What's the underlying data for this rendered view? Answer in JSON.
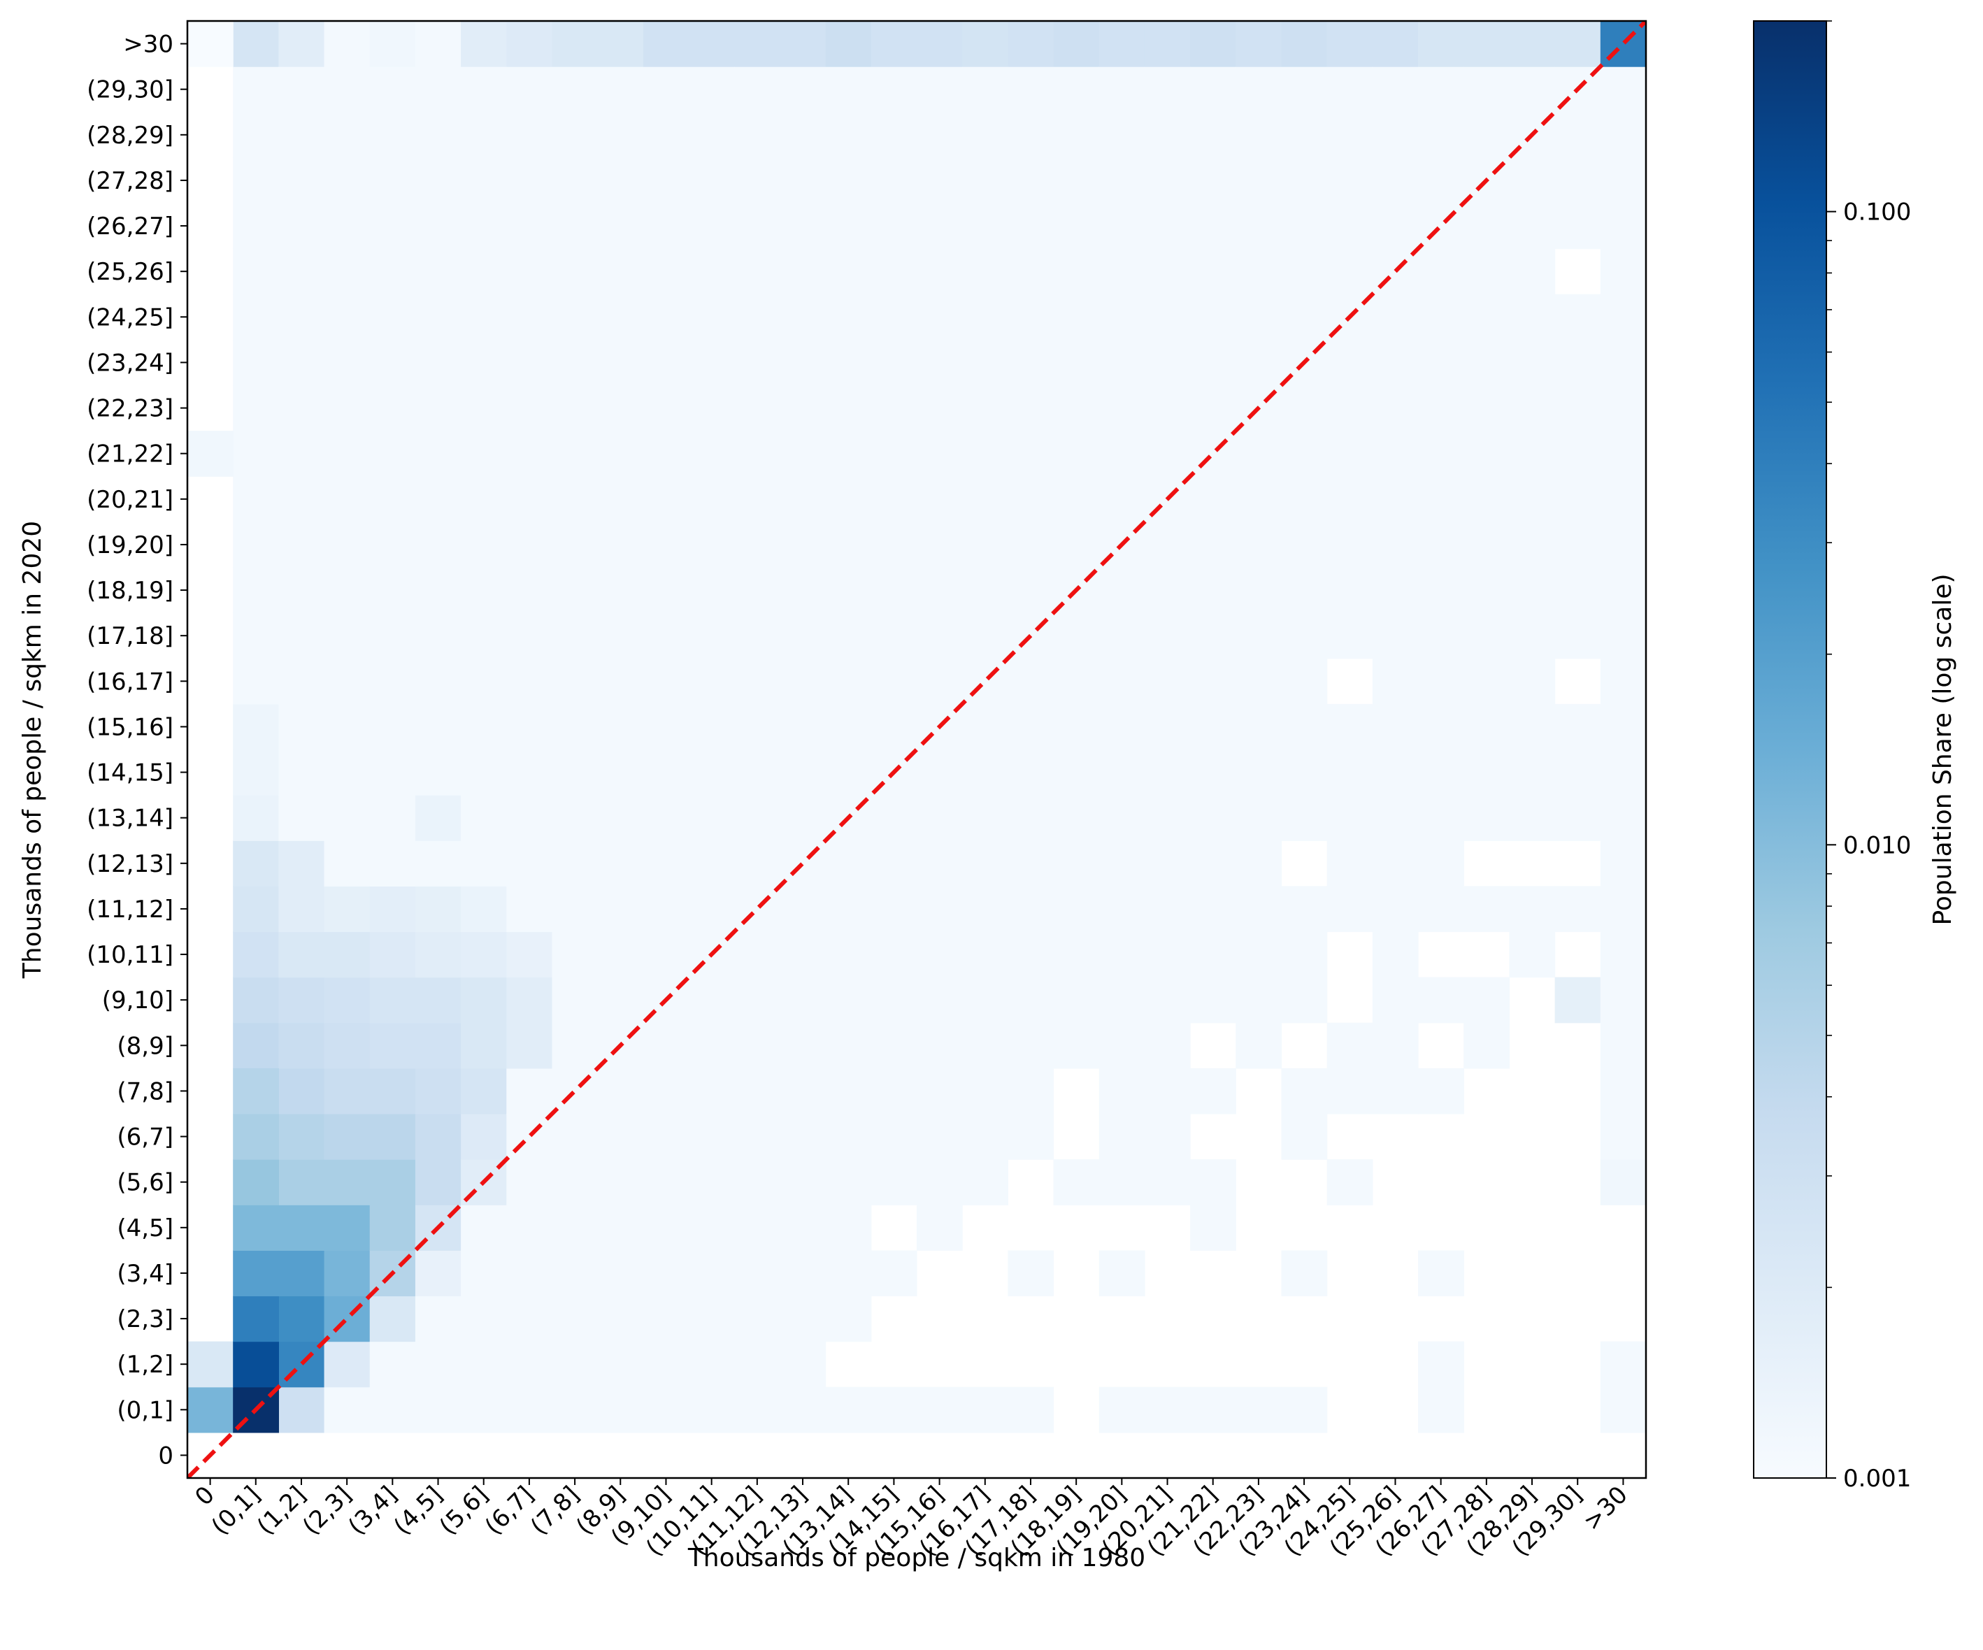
{
  "chart_data": {
    "type": "heatmap",
    "title": "",
    "xlabel": "Thousands of people / sqkm in 1980",
    "ylabel": "Thousands of people / sqkm in 2020",
    "categories": [
      "0",
      "(0,1]",
      "(1,2]",
      "(2,3]",
      "(3,4]",
      "(4,5]",
      "(5,6]",
      "(6,7]",
      "(7,8]",
      "(8,9]",
      "(9,10]",
      "(10,11]",
      "(11,12]",
      "(12,13]",
      "(13,14]",
      "(14,15]",
      "(15,16]",
      "(16,17]",
      "(17,18]",
      "(18,19]",
      "(19,20]",
      "(20,21]",
      "(21,22]",
      "(22,23]",
      "(23,24]",
      "(24,25]",
      "(25,26]",
      "(26,27]",
      "(27,28]",
      "(28,29]",
      "(29,30]",
      ">30"
    ],
    "colorbar": {
      "label": "Population Share (log scale)",
      "scale": "log",
      "vmin": 0.001,
      "vmax": 0.2,
      "tick_labels": [
        "0.001",
        "0.010",
        "0.100"
      ],
      "tick_values": [
        0.001,
        0.01,
        0.1
      ],
      "colormap": "Blues"
    },
    "diagonal_line": {
      "style": "dashed",
      "color": "#ee1111"
    },
    "default_value": 0.0011,
    "white_cells": [
      [
        1,
        1
      ],
      [
        1,
        2
      ],
      [
        1,
        3
      ],
      [
        1,
        4
      ],
      [
        1,
        5
      ],
      [
        1,
        6
      ],
      [
        1,
        7
      ],
      [
        1,
        8
      ],
      [
        0,
        11
      ],
      [
        0,
        12
      ],
      [
        0,
        13
      ],
      [
        0,
        16
      ],
      [
        30,
        26
      ],
      [
        30,
        17
      ],
      [
        25,
        17
      ],
      [
        24,
        13
      ],
      [
        28,
        13
      ],
      [
        29,
        13
      ],
      [
        30,
        13
      ],
      [
        25,
        11
      ],
      [
        27,
        11
      ],
      [
        28,
        11
      ],
      [
        30,
        11
      ],
      [
        25,
        10
      ],
      [
        29,
        10
      ],
      [
        22,
        9
      ],
      [
        24,
        9
      ],
      [
        27,
        9
      ],
      [
        29,
        9
      ],
      [
        30,
        9
      ],
      [
        19,
        8
      ],
      [
        23,
        8
      ],
      [
        28,
        8
      ],
      [
        29,
        8
      ],
      [
        30,
        8
      ],
      [
        19,
        7
      ],
      [
        22,
        7
      ],
      [
        23,
        7
      ],
      [
        25,
        7
      ],
      [
        26,
        7
      ],
      [
        27,
        7
      ],
      [
        28,
        7
      ],
      [
        29,
        7
      ],
      [
        30,
        7
      ],
      [
        18,
        6
      ],
      [
        23,
        6
      ],
      [
        24,
        6
      ],
      [
        26,
        6
      ],
      [
        27,
        6
      ],
      [
        28,
        6
      ],
      [
        29,
        6
      ],
      [
        30,
        6
      ],
      [
        15,
        5
      ],
      [
        17,
        5
      ],
      [
        18,
        5
      ],
      [
        19,
        5
      ],
      [
        20,
        5
      ],
      [
        21,
        5
      ],
      [
        23,
        5
      ],
      [
        24,
        5
      ],
      [
        25,
        5
      ],
      [
        26,
        5
      ],
      [
        27,
        5
      ],
      [
        28,
        5
      ],
      [
        29,
        5
      ],
      [
        30,
        5
      ],
      [
        31,
        5
      ],
      [
        16,
        4
      ],
      [
        17,
        4
      ],
      [
        19,
        4
      ],
      [
        21,
        4
      ],
      [
        22,
        4
      ],
      [
        23,
        4
      ],
      [
        25,
        4
      ],
      [
        26,
        4
      ],
      [
        28,
        4
      ],
      [
        29,
        4
      ],
      [
        30,
        4
      ],
      [
        31,
        4
      ],
      [
        15,
        3
      ],
      [
        16,
        3
      ],
      [
        17,
        3
      ],
      [
        18,
        3
      ],
      [
        19,
        3
      ],
      [
        20,
        3
      ],
      [
        21,
        3
      ],
      [
        22,
        3
      ],
      [
        23,
        3
      ],
      [
        24,
        3
      ],
      [
        25,
        3
      ],
      [
        26,
        3
      ],
      [
        27,
        3
      ],
      [
        28,
        3
      ],
      [
        29,
        3
      ],
      [
        30,
        3
      ],
      [
        31,
        3
      ],
      [
        14,
        2
      ],
      [
        15,
        2
      ],
      [
        16,
        2
      ],
      [
        17,
        2
      ],
      [
        18,
        2
      ],
      [
        19,
        2
      ],
      [
        20,
        2
      ],
      [
        21,
        2
      ],
      [
        22,
        2
      ],
      [
        23,
        2
      ],
      [
        24,
        2
      ],
      [
        25,
        2
      ],
      [
        26,
        2
      ],
      [
        28,
        2
      ],
      [
        29,
        2
      ],
      [
        30,
        2
      ],
      [
        19,
        1
      ],
      [
        25,
        1
      ],
      [
        26,
        1
      ],
      [
        28,
        1
      ],
      [
        29,
        1
      ],
      [
        30,
        1
      ]
    ],
    "cells": [
      {
        "x": 0,
        "y": 1,
        "v": 0.012
      },
      {
        "x": 1,
        "y": 1,
        "v": 0.2
      },
      {
        "x": 2,
        "y": 1,
        "v": 0.003
      },
      {
        "x": 0,
        "y": 2,
        "v": 0.0022
      },
      {
        "x": 1,
        "y": 2,
        "v": 0.11
      },
      {
        "x": 2,
        "y": 2,
        "v": 0.035
      },
      {
        "x": 3,
        "y": 2,
        "v": 0.002
      },
      {
        "x": 1,
        "y": 3,
        "v": 0.04
      },
      {
        "x": 2,
        "y": 3,
        "v": 0.03
      },
      {
        "x": 3,
        "y": 3,
        "v": 0.014
      },
      {
        "x": 4,
        "y": 3,
        "v": 0.0022
      },
      {
        "x": 1,
        "y": 4,
        "v": 0.02
      },
      {
        "x": 2,
        "y": 4,
        "v": 0.02
      },
      {
        "x": 3,
        "y": 4,
        "v": 0.012
      },
      {
        "x": 4,
        "y": 4,
        "v": 0.005
      },
      {
        "x": 5,
        "y": 4,
        "v": 0.0015
      },
      {
        "x": 1,
        "y": 5,
        "v": 0.011
      },
      {
        "x": 2,
        "y": 5,
        "v": 0.011
      },
      {
        "x": 3,
        "y": 5,
        "v": 0.011
      },
      {
        "x": 4,
        "y": 5,
        "v": 0.006
      },
      {
        "x": 5,
        "y": 5,
        "v": 0.0025
      },
      {
        "x": 1,
        "y": 6,
        "v": 0.008
      },
      {
        "x": 2,
        "y": 6,
        "v": 0.006
      },
      {
        "x": 3,
        "y": 6,
        "v": 0.006
      },
      {
        "x": 4,
        "y": 6,
        "v": 0.006
      },
      {
        "x": 5,
        "y": 6,
        "v": 0.0035
      },
      {
        "x": 6,
        "y": 6,
        "v": 0.0018
      },
      {
        "x": 1,
        "y": 7,
        "v": 0.006
      },
      {
        "x": 2,
        "y": 7,
        "v": 0.005
      },
      {
        "x": 3,
        "y": 7,
        "v": 0.0045
      },
      {
        "x": 4,
        "y": 7,
        "v": 0.0045
      },
      {
        "x": 5,
        "y": 7,
        "v": 0.0035
      },
      {
        "x": 6,
        "y": 7,
        "v": 0.002
      },
      {
        "x": 1,
        "y": 8,
        "v": 0.005
      },
      {
        "x": 2,
        "y": 8,
        "v": 0.004
      },
      {
        "x": 3,
        "y": 8,
        "v": 0.0035
      },
      {
        "x": 4,
        "y": 8,
        "v": 0.0035
      },
      {
        "x": 5,
        "y": 8,
        "v": 0.003
      },
      {
        "x": 6,
        "y": 8,
        "v": 0.0025
      },
      {
        "x": 1,
        "y": 9,
        "v": 0.004
      },
      {
        "x": 2,
        "y": 9,
        "v": 0.0035
      },
      {
        "x": 3,
        "y": 9,
        "v": 0.003
      },
      {
        "x": 4,
        "y": 9,
        "v": 0.0028
      },
      {
        "x": 5,
        "y": 9,
        "v": 0.0028
      },
      {
        "x": 6,
        "y": 9,
        "v": 0.0022
      },
      {
        "x": 7,
        "y": 9,
        "v": 0.0018
      },
      {
        "x": 1,
        "y": 10,
        "v": 0.0035
      },
      {
        "x": 2,
        "y": 10,
        "v": 0.003
      },
      {
        "x": 3,
        "y": 10,
        "v": 0.0028
      },
      {
        "x": 4,
        "y": 10,
        "v": 0.0025
      },
      {
        "x": 5,
        "y": 10,
        "v": 0.0025
      },
      {
        "x": 6,
        "y": 10,
        "v": 0.0022
      },
      {
        "x": 7,
        "y": 10,
        "v": 0.0018
      },
      {
        "x": 1,
        "y": 11,
        "v": 0.0028
      },
      {
        "x": 2,
        "y": 11,
        "v": 0.0022
      },
      {
        "x": 3,
        "y": 11,
        "v": 0.0022
      },
      {
        "x": 4,
        "y": 11,
        "v": 0.002
      },
      {
        "x": 5,
        "y": 11,
        "v": 0.0018
      },
      {
        "x": 6,
        "y": 11,
        "v": 0.0017
      },
      {
        "x": 7,
        "y": 11,
        "v": 0.0015
      },
      {
        "x": 1,
        "y": 12,
        "v": 0.0024
      },
      {
        "x": 2,
        "y": 12,
        "v": 0.0018
      },
      {
        "x": 3,
        "y": 12,
        "v": 0.0016
      },
      {
        "x": 4,
        "y": 12,
        "v": 0.0017
      },
      {
        "x": 5,
        "y": 12,
        "v": 0.0016
      },
      {
        "x": 6,
        "y": 12,
        "v": 0.0014
      },
      {
        "x": 1,
        "y": 13,
        "v": 0.0022
      },
      {
        "x": 2,
        "y": 13,
        "v": 0.0018
      },
      {
        "x": 1,
        "y": 14,
        "v": 0.0014
      },
      {
        "x": 5,
        "y": 14,
        "v": 0.0014
      },
      {
        "x": 1,
        "y": 15,
        "v": 0.0013
      },
      {
        "x": 1,
        "y": 16,
        "v": 0.0013
      },
      {
        "x": 0,
        "y": 22,
        "v": 0.0012
      },
      {
        "x": 0,
        "y": 31,
        "v": 0.001
      },
      {
        "x": 1,
        "y": 31,
        "v": 0.0025
      },
      {
        "x": 2,
        "y": 31,
        "v": 0.0018
      },
      {
        "x": 3,
        "y": 31,
        "v": 0.0011
      },
      {
        "x": 4,
        "y": 31,
        "v": 0.0012
      },
      {
        "x": 5,
        "y": 31,
        "v": 0.0011
      },
      {
        "x": 6,
        "y": 31,
        "v": 0.0018
      },
      {
        "x": 7,
        "y": 31,
        "v": 0.002
      },
      {
        "x": 8,
        "y": 31,
        "v": 0.0022
      },
      {
        "x": 9,
        "y": 31,
        "v": 0.0022
      },
      {
        "x": 10,
        "y": 31,
        "v": 0.0028
      },
      {
        "x": 11,
        "y": 31,
        "v": 0.0028
      },
      {
        "x": 12,
        "y": 31,
        "v": 0.0028
      },
      {
        "x": 13,
        "y": 31,
        "v": 0.0028
      },
      {
        "x": 14,
        "y": 31,
        "v": 0.0032
      },
      {
        "x": 15,
        "y": 31,
        "v": 0.0028
      },
      {
        "x": 16,
        "y": 31,
        "v": 0.0028
      },
      {
        "x": 17,
        "y": 31,
        "v": 0.0026
      },
      {
        "x": 18,
        "y": 31,
        "v": 0.0028
      },
      {
        "x": 19,
        "y": 31,
        "v": 0.003
      },
      {
        "x": 20,
        "y": 31,
        "v": 0.0028
      },
      {
        "x": 21,
        "y": 31,
        "v": 0.0028
      },
      {
        "x": 22,
        "y": 31,
        "v": 0.003
      },
      {
        "x": 23,
        "y": 31,
        "v": 0.0028
      },
      {
        "x": 24,
        "y": 31,
        "v": 0.003
      },
      {
        "x": 25,
        "y": 31,
        "v": 0.0028
      },
      {
        "x": 26,
        "y": 31,
        "v": 0.0028
      },
      {
        "x": 27,
        "y": 31,
        "v": 0.0024
      },
      {
        "x": 28,
        "y": 31,
        "v": 0.0024
      },
      {
        "x": 29,
        "y": 31,
        "v": 0.0024
      },
      {
        "x": 30,
        "y": 31,
        "v": 0.0024
      },
      {
        "x": 31,
        "y": 31,
        "v": 0.04
      },
      {
        "x": 30,
        "y": 10,
        "v": 0.0016
      },
      {
        "x": 31,
        "y": 6,
        "v": 0.0012
      }
    ]
  }
}
